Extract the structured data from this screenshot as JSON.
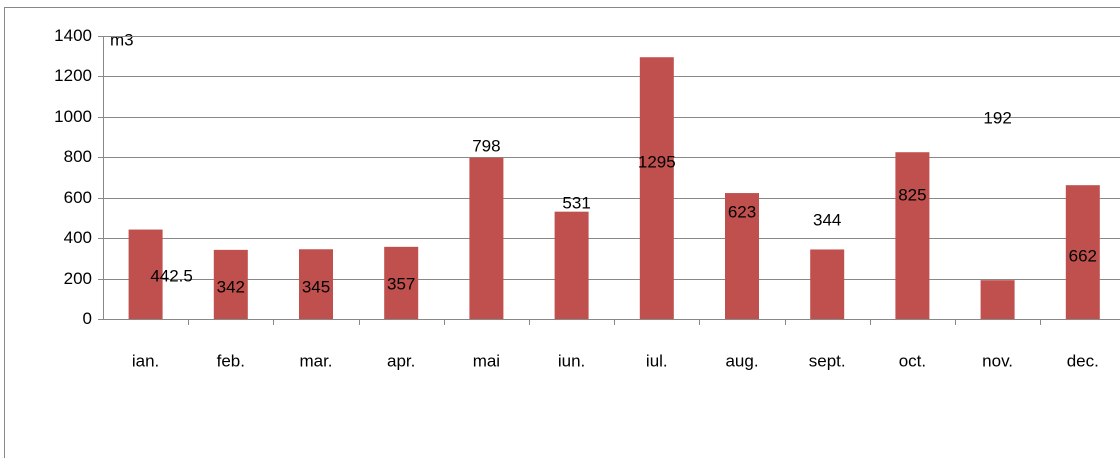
{
  "chart_data": {
    "type": "bar",
    "y_axis_label": "m3",
    "categories": [
      "ian.",
      "feb.",
      "mar.",
      "apr.",
      "mai",
      "iun.",
      "iul.",
      "aug.",
      "sept.",
      "oct.",
      "nov.",
      "dec."
    ],
    "values": [
      442.5,
      342,
      345,
      357,
      798,
      531,
      1295,
      623,
      344,
      825,
      192,
      662
    ],
    "color": "#c0504d",
    "ylim": [
      0,
      1400
    ],
    "yticks": [
      0,
      200,
      400,
      600,
      800,
      1000,
      1200,
      1400
    ],
    "grid": true
  }
}
